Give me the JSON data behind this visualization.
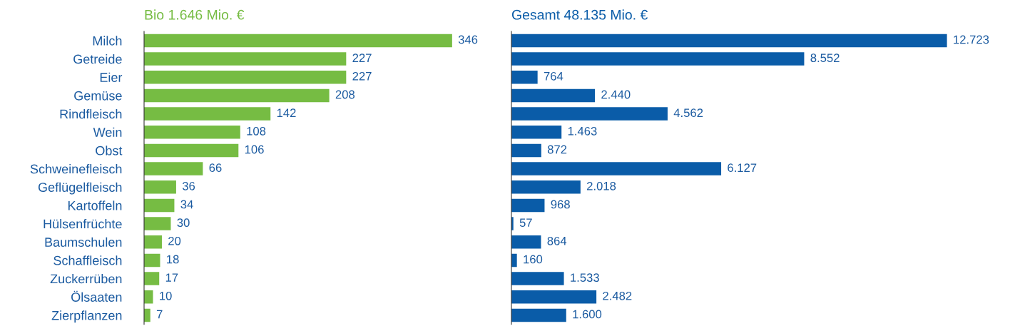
{
  "chart_data": [
    {
      "type": "bar",
      "orientation": "horizontal",
      "title": "Bio 1.646 Mio. €",
      "color": "#76bc43",
      "data_labels": true,
      "grid": false,
      "legend": false,
      "categories": [
        "Milch",
        "Getreide",
        "Eier",
        "Gemüse",
        "Rindfleisch",
        "Wein",
        "Obst",
        "Schweinefleisch",
        "Geflügelfleisch",
        "Kartoffeln",
        "Hülsenfrüchte",
        "Baumschulen",
        "Schaffleisch",
        "Zuckerrüben",
        "Ölsaaten",
        "Zierpflanzen"
      ],
      "values": [
        346,
        227,
        227,
        208,
        142,
        108,
        106,
        66,
        36,
        34,
        30,
        20,
        18,
        17,
        10,
        7
      ]
    },
    {
      "type": "bar",
      "orientation": "horizontal",
      "title": "Gesamt 48.135 Mio. €",
      "color": "#0a5ca8",
      "grid": false,
      "legend": false,
      "categories": [
        null,
        null,
        null,
        null,
        null,
        null,
        null,
        null,
        null,
        null,
        null,
        null,
        null,
        null,
        null,
        null
      ],
      "values": [
        12723,
        8552,
        764,
        2440,
        4562,
        1463,
        872,
        6127,
        2018,
        968,
        57,
        864,
        160,
        1533,
        2482,
        1600
      ],
      "value_labels": [
        "12.723",
        "8.552",
        "764",
        "2.440",
        "4.562",
        "1.463",
        "872",
        "6.127",
        "2.018",
        "968",
        "57",
        "864",
        "160",
        "1.533",
        "2.482",
        "1.600"
      ]
    }
  ]
}
